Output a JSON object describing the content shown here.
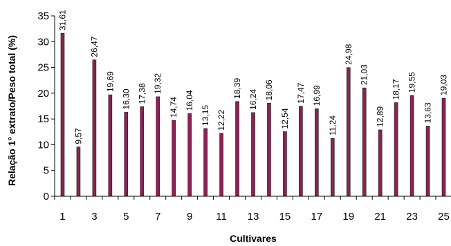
{
  "chart_data": {
    "type": "bar",
    "title": "",
    "xlabel": "Cultivares",
    "ylabel": "Relação 1° extrato/Peso total (%)",
    "ylim": [
      0,
      35
    ],
    "ytick_step": 5,
    "grid": false,
    "legend": "none",
    "bar_color": "#8B2252",
    "bar_edge_color": "#1a1a1a",
    "categories": [
      1,
      2,
      3,
      4,
      5,
      6,
      7,
      8,
      9,
      10,
      11,
      12,
      13,
      14,
      15,
      16,
      17,
      18,
      19,
      20,
      21,
      22,
      23,
      24,
      25
    ],
    "x_tick_labels": [
      "1",
      "3",
      "5",
      "7",
      "9",
      "11",
      "13",
      "15",
      "17",
      "19",
      "21",
      "23",
      "25"
    ],
    "values": [
      31.61,
      9.57,
      26.47,
      19.69,
      16.3,
      17.38,
      19.32,
      14.74,
      16.04,
      13.15,
      12.22,
      18.39,
      16.24,
      18.06,
      12.54,
      17.47,
      16.99,
      11.24,
      24.98,
      21.03,
      12.89,
      18.17,
      19.55,
      13.63,
      19.03
    ],
    "data_labels": [
      "31,61",
      "9,57",
      "26,47",
      "19,69",
      "16,30",
      "17,38",
      "19,32",
      "14,74",
      "16,04",
      "13,15",
      "12,22",
      "18,39",
      "16,24",
      "18,06",
      "12,54",
      "17,47",
      "16,99",
      "11,24",
      "24,98",
      "21,03",
      "12,89",
      "18,17",
      "19,55",
      "13,63",
      "19,03"
    ]
  }
}
